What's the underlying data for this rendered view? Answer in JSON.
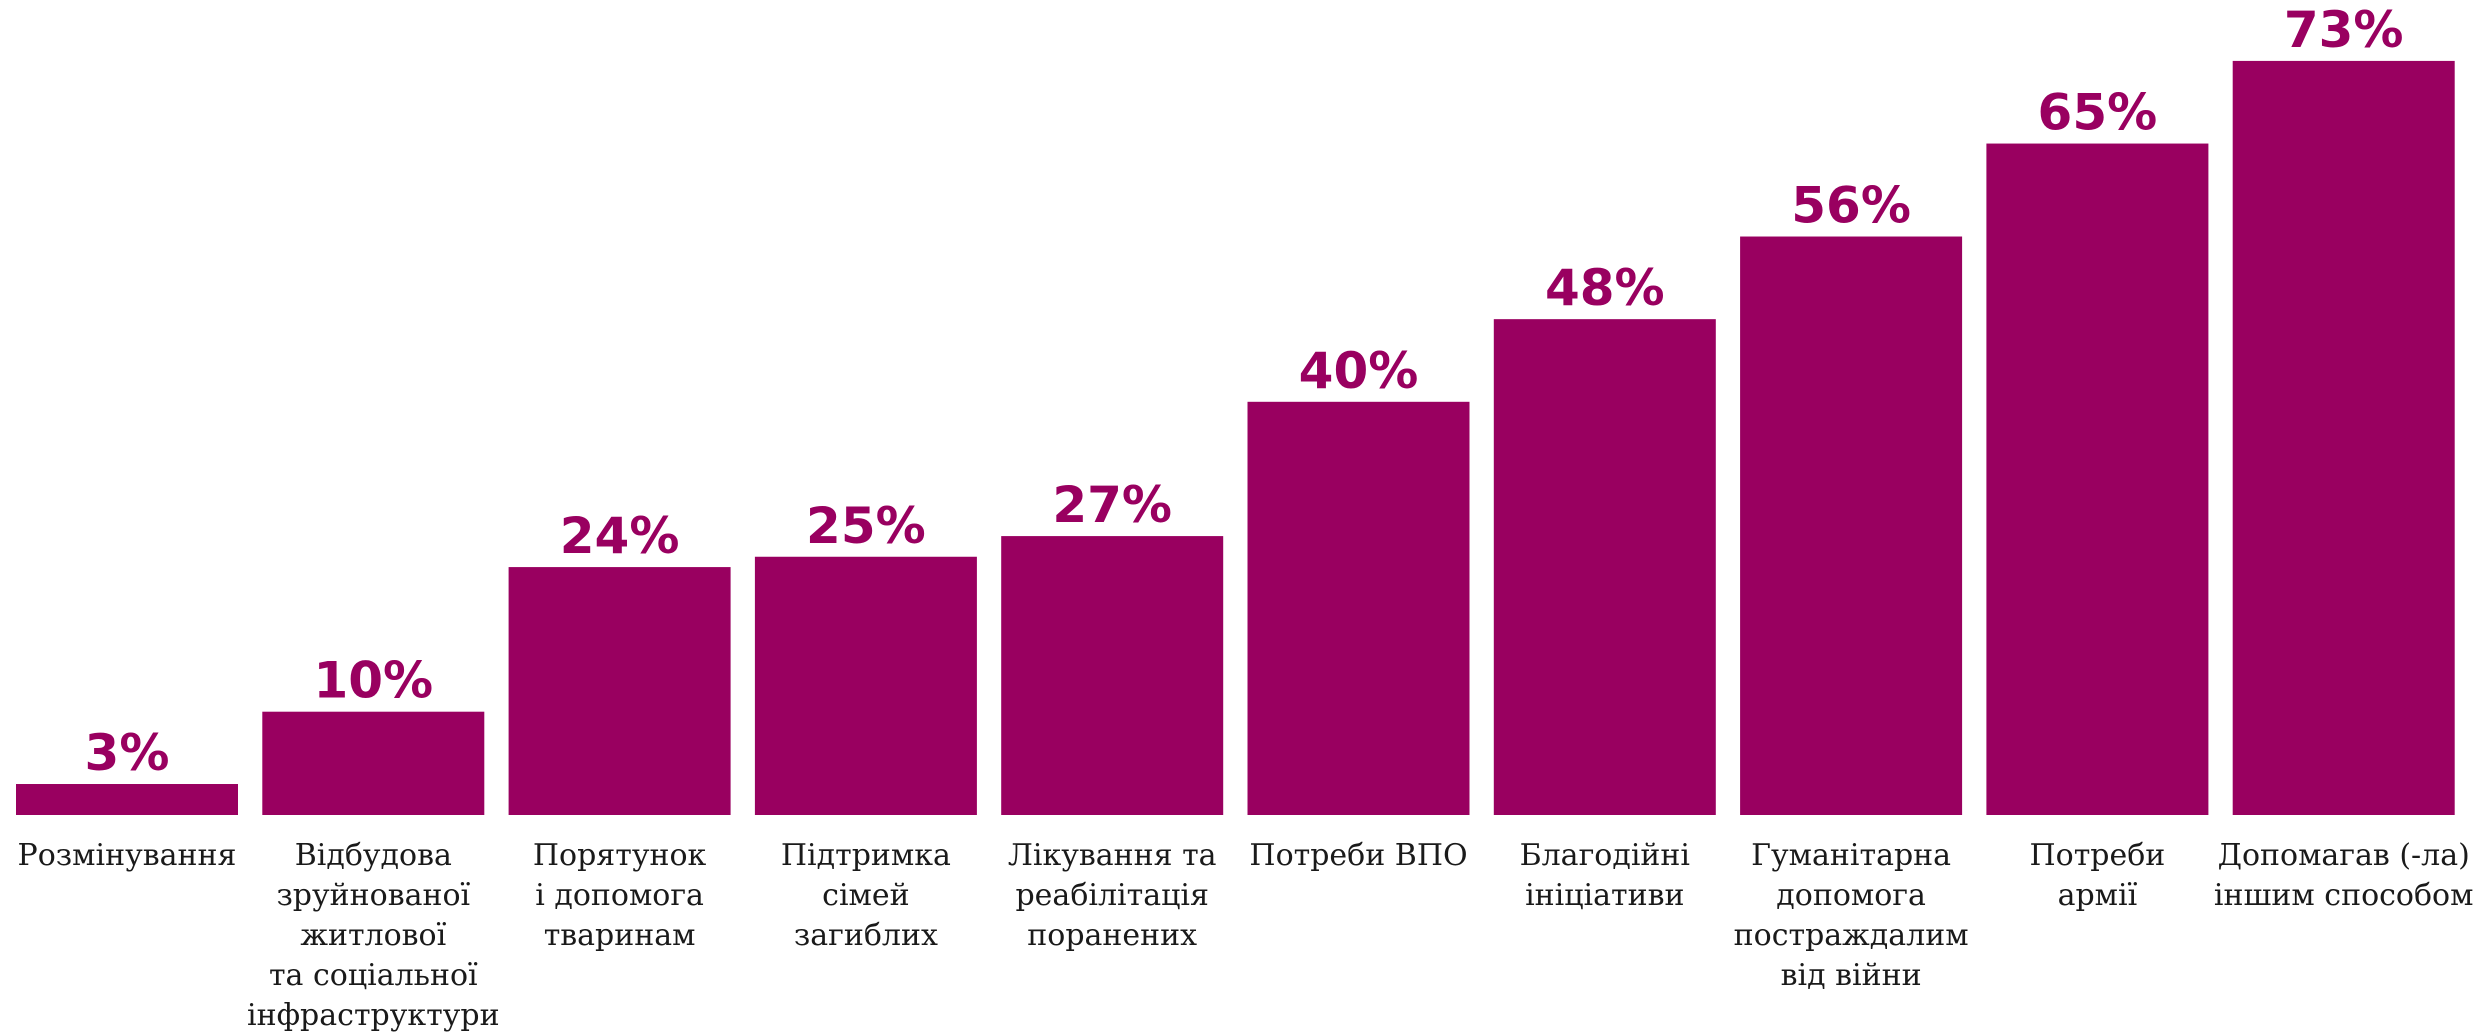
{
  "chart_data": {
    "type": "bar",
    "title": "",
    "xlabel": "",
    "ylabel": "",
    "ylim": [
      0,
      73
    ],
    "grid": false,
    "legend": "none",
    "bar_color": "#990060",
    "value_color": "#990060",
    "value_suffix": "%",
    "categories": [
      [
        "Розмінування"
      ],
      [
        "Відбудова",
        "зруйнованої",
        "житлової",
        "та соціальної",
        "інфраструктури"
      ],
      [
        "Порятунок",
        "і допомога",
        "тваринам"
      ],
      [
        "Підтримка",
        "сімей",
        "загиблих"
      ],
      [
        "Лікування та",
        "реабілітація",
        "поранених"
      ],
      [
        "Потреби ВПО"
      ],
      [
        "Благодійні",
        "ініціативи"
      ],
      [
        "Гуманітарна",
        "допомога",
        "постраждалим",
        "від війни"
      ],
      [
        "Потреби",
        "армії"
      ],
      [
        "Допомагав (-ла)",
        "іншим способом"
      ]
    ],
    "values": [
      3,
      10,
      24,
      25,
      27,
      40,
      48,
      56,
      65,
      73
    ],
    "value_labels": [
      "3%",
      "10%",
      "24%",
      "25%",
      "27%",
      "40%",
      "48%",
      "56%",
      "65%",
      "73%"
    ]
  }
}
